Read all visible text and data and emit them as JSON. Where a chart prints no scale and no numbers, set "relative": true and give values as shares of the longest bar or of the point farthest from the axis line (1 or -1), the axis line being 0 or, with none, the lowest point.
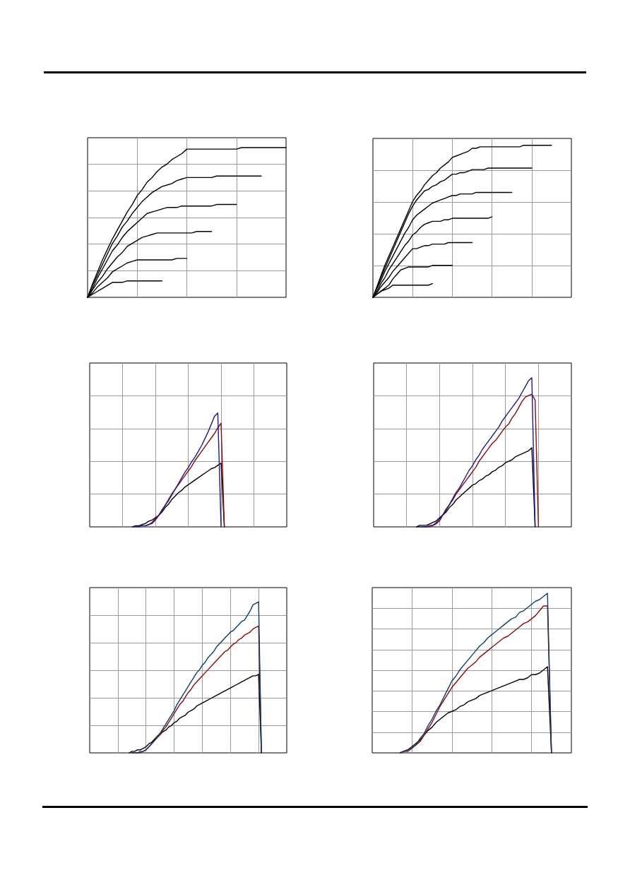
{
  "chart_data": [
    {
      "type": "line",
      "relative": true,
      "grid": true,
      "tick_labels": false,
      "categories": [
        null,
        null,
        null,
        null,
        null,
        null,
        null,
        null,
        null,
        null,
        null,
        null,
        null,
        null,
        null,
        null,
        null,
        null,
        null,
        null,
        null,
        null,
        null,
        null,
        null,
        null,
        null,
        null,
        null,
        null,
        null,
        null,
        null,
        null,
        null,
        null,
        null,
        null,
        null,
        null,
        null
      ],
      "series": [
        {
          "color": "#000000",
          "values": [
            0,
            0.09,
            0.17,
            0.25,
            0.32,
            0.39,
            0.45,
            0.51,
            0.57,
            0.62,
            0.68,
            0.72,
            0.77,
            0.8,
            0.84,
            0.87,
            0.89,
            0.92,
            0.94,
            0.96,
            0.99,
            0.99,
            0.99,
            0.99,
            0.99,
            0.99,
            0.99,
            0.99,
            0.99,
            0.99,
            0.99,
            1,
            1,
            1,
            1,
            1,
            1,
            1,
            1,
            1,
            1
          ]
        },
        {
          "color": "#000000",
          "values": [
            0,
            0.08,
            0.15,
            0.22,
            0.29,
            0.36,
            0.41,
            0.47,
            0.51,
            0.56,
            0.6,
            0.64,
            0.67,
            0.7,
            0.72,
            0.74,
            0.75,
            0.76,
            0.78,
            0.79,
            0.8,
            0.8,
            0.8,
            0.8,
            0.8,
            0.8,
            0.81,
            0.81,
            0.81,
            0.81,
            0.81,
            0.81,
            0.81,
            0.81,
            0.81,
            0.81,
            null,
            null,
            null,
            null,
            null
          ]
        },
        {
          "color": "#000000",
          "values": [
            0,
            0.06,
            0.13,
            0.19,
            0.25,
            0.31,
            0.35,
            0.4,
            0.44,
            0.47,
            0.5,
            0.53,
            0.56,
            0.57,
            0.58,
            0.59,
            0.6,
            0.6,
            0.6,
            0.61,
            0.61,
            0.61,
            0.61,
            0.61,
            0.61,
            0.61,
            0.62,
            0.62,
            0.62,
            0.62,
            0.62,
            null,
            null,
            null,
            null,
            null,
            null,
            null,
            null,
            null,
            null
          ]
        },
        {
          "color": "#000000",
          "values": [
            0,
            0.05,
            0.1,
            0.14,
            0.19,
            0.23,
            0.27,
            0.3,
            0.34,
            0.36,
            0.38,
            0.4,
            0.41,
            0.42,
            0.43,
            0.43,
            0.43,
            0.43,
            0.43,
            0.43,
            0.43,
            0.43,
            0.44,
            0.44,
            0.44,
            0.44,
            null,
            null,
            null,
            null,
            null,
            null,
            null,
            null,
            null,
            null,
            null,
            null,
            null,
            null,
            null
          ]
        },
        {
          "color": "#000000",
          "values": [
            0,
            0.03,
            0.07,
            0.1,
            0.13,
            0.17,
            0.19,
            0.21,
            0.23,
            0.24,
            0.25,
            0.25,
            0.25,
            0.25,
            0.25,
            0.25,
            0.25,
            0.25,
            0.26,
            0.26,
            0.26,
            null,
            null,
            null,
            null,
            null,
            null,
            null,
            null,
            null,
            null,
            null,
            null,
            null,
            null,
            null,
            null,
            null,
            null,
            null,
            null
          ]
        },
        {
          "color": "#000000",
          "values": [
            0,
            0.02,
            0.04,
            0.06,
            0.08,
            0.1,
            0.1,
            0.1,
            0.11,
            0.11,
            0.11,
            0.11,
            0.11,
            0.11,
            0.11,
            0.11,
            null,
            null,
            null,
            null,
            null,
            null,
            null,
            null,
            null,
            null,
            null,
            null,
            null,
            null,
            null,
            null,
            null,
            null,
            null,
            null,
            null,
            null,
            null,
            null,
            null
          ]
        }
      ]
    },
    {
      "type": "line",
      "relative": true,
      "grid": true,
      "tick_labels": false,
      "categories": [
        null,
        null,
        null,
        null,
        null,
        null,
        null,
        null,
        null,
        null,
        null,
        null,
        null,
        null,
        null,
        null,
        null,
        null,
        null,
        null,
        null,
        null,
        null,
        null,
        null,
        null,
        null,
        null,
        null,
        null,
        null,
        null,
        null,
        null,
        null,
        null,
        null,
        null,
        null,
        null,
        null,
        null,
        null,
        null,
        null,
        null,
        null,
        null,
        null,
        null,
        null
      ],
      "series": [
        {
          "color": "#000000",
          "values": [
            0,
            0.07,
            0.14,
            0.21,
            0.27,
            0.33,
            0.39,
            0.45,
            0.51,
            0.57,
            0.63,
            0.67,
            0.7,
            0.74,
            0.77,
            0.8,
            0.82,
            0.85,
            0.87,
            0.89,
            0.92,
            0.93,
            0.94,
            0.95,
            0.96,
            0.98,
            0.98,
            0.99,
            0.99,
            0.99,
            0.99,
            0.99,
            0.99,
            0.99,
            0.99,
            0.99,
            0.99,
            0.99,
            1,
            1,
            1,
            1,
            1,
            1,
            1,
            1,
            null,
            null,
            null,
            null,
            null
          ]
        },
        {
          "color": "#000000",
          "values": [
            0,
            0.06,
            0.13,
            0.19,
            0.25,
            0.31,
            0.37,
            0.43,
            0.49,
            0.55,
            0.6,
            0.64,
            0.67,
            0.7,
            0.71,
            0.73,
            0.74,
            0.76,
            0.77,
            0.79,
            0.81,
            0.81,
            0.82,
            0.82,
            0.83,
            0.84,
            0.84,
            0.84,
            0.84,
            0.85,
            0.85,
            0.85,
            0.85,
            0.85,
            0.85,
            0.85,
            0.85,
            0.85,
            0.85,
            0.85,
            0.85,
            null,
            null,
            null,
            null,
            null,
            null,
            null,
            null,
            null,
            null
          ]
        },
        {
          "color": "#000000",
          "values": [
            0,
            0.06,
            0.11,
            0.17,
            0.22,
            0.27,
            0.32,
            0.37,
            0.42,
            0.46,
            0.51,
            0.54,
            0.56,
            0.58,
            0.6,
            0.62,
            0.63,
            0.64,
            0.65,
            0.66,
            0.67,
            0.67,
            0.68,
            0.68,
            0.68,
            0.68,
            0.69,
            0.69,
            0.69,
            0.69,
            0.69,
            0.69,
            0.69,
            0.69,
            0.69,
            0.69,
            null,
            null,
            null,
            null,
            null,
            null,
            null,
            null,
            null,
            null,
            null,
            null,
            null,
            null,
            null
          ]
        },
        {
          "color": "#000000",
          "values": [
            0,
            0.04,
            0.09,
            0.13,
            0.18,
            0.22,
            0.26,
            0.3,
            0.34,
            0.37,
            0.41,
            0.43,
            0.46,
            0.48,
            0.49,
            0.5,
            0.5,
            0.5,
            0.51,
            0.51,
            0.52,
            0.52,
            0.52,
            0.52,
            0.52,
            0.52,
            0.52,
            0.52,
            0.52,
            0.52,
            0.53,
            null,
            null,
            null,
            null,
            null,
            null,
            null,
            null,
            null,
            null,
            null,
            null,
            null,
            null,
            null,
            null,
            null,
            null,
            null,
            null
          ]
        },
        {
          "color": "#000000",
          "values": [
            0,
            0.03,
            0.07,
            0.1,
            0.13,
            0.17,
            0.2,
            0.23,
            0.26,
            0.29,
            0.32,
            0.32,
            0.33,
            0.34,
            0.34,
            0.35,
            0.35,
            0.35,
            0.35,
            0.36,
            0.36,
            0.36,
            0.36,
            0.36,
            0.36,
            0.36,
            null,
            null,
            null,
            null,
            null,
            null,
            null,
            null,
            null,
            null,
            null,
            null,
            null,
            null,
            null,
            null,
            null,
            null,
            null,
            null,
            null,
            null,
            null,
            null,
            null
          ]
        },
        {
          "color": "#000000",
          "values": [
            0,
            0.02,
            0.04,
            0.06,
            0.08,
            0.12,
            0.15,
            0.18,
            0.19,
            0.2,
            0.2,
            0.2,
            0.2,
            0.2,
            0.2,
            0.21,
            0.21,
            0.21,
            0.21,
            0.21,
            0.21,
            null,
            null,
            null,
            null,
            null,
            null,
            null,
            null,
            null,
            null,
            null,
            null,
            null,
            null,
            null,
            null,
            null,
            null,
            null,
            null,
            null,
            null,
            null,
            null,
            null,
            null,
            null,
            null,
            null,
            null
          ]
        },
        {
          "color": "#000000",
          "values": [
            0,
            0.02,
            0.04,
            0.05,
            0.06,
            0.08,
            0.08,
            0.08,
            0.08,
            0.08,
            0.08,
            0.08,
            0.08,
            0.08,
            0.08,
            0.09,
            null,
            null,
            null,
            null,
            null,
            null,
            null,
            null,
            null,
            null,
            null,
            null,
            null,
            null,
            null,
            null,
            null,
            null,
            null,
            null,
            null,
            null,
            null,
            null,
            null,
            null,
            null,
            null,
            null,
            null,
            null,
            null,
            null,
            null,
            null
          ]
        }
      ]
    },
    {
      "type": "line",
      "relative": true,
      "grid": true,
      "tick_labels": false,
      "categories": [
        null,
        null,
        null,
        null,
        null,
        null,
        null,
        null,
        null,
        null,
        null,
        null,
        null,
        null,
        null,
        null,
        null,
        null,
        null,
        null,
        null,
        null,
        null,
        null,
        null,
        null,
        null,
        null,
        null,
        null,
        null,
        null,
        null,
        null,
        null,
        null,
        null,
        null,
        null,
        null,
        null,
        null,
        null,
        null,
        null,
        null,
        null,
        null,
        null,
        null,
        null,
        null,
        null,
        null,
        null,
        null,
        null,
        null,
        null,
        null,
        null
      ],
      "series": [
        {
          "color": "#000000",
          "values": [
            null,
            null,
            null,
            null,
            null,
            null,
            null,
            null,
            null,
            null,
            null,
            null,
            null,
            0,
            0.01,
            0.01,
            0.02,
            0.03,
            0.05,
            0.06,
            0.08,
            0.1,
            0.13,
            0.17,
            0.2,
            0.24,
            0.27,
            0.3,
            0.32,
            0.35,
            0.37,
            0.39,
            0.41,
            0.43,
            0.45,
            0.47,
            0.49,
            0.51,
            0.52,
            0.54,
            0.56,
            0,
            null,
            null,
            null,
            null,
            null,
            null,
            null,
            null,
            null,
            null,
            null,
            null,
            null,
            null,
            null,
            null,
            null,
            null,
            null
          ]
        },
        {
          "color": "#8b0a0a",
          "values": [
            null,
            null,
            null,
            null,
            null,
            null,
            null,
            null,
            null,
            null,
            null,
            null,
            null,
            null,
            null,
            null,
            null,
            0.01,
            0.02,
            0.04,
            0.07,
            0.1,
            0.15,
            0.19,
            0.24,
            0.29,
            0.33,
            0.37,
            0.41,
            0.45,
            0.49,
            0.53,
            0.58,
            0.62,
            0.66,
            0.7,
            0.74,
            0.78,
            0.82,
            0.87,
            0.91,
            0,
            null,
            null,
            null,
            null,
            null,
            null,
            null,
            null,
            null,
            null,
            null,
            null,
            null,
            null,
            null,
            null,
            null,
            null,
            null
          ]
        },
        {
          "color": "#1a1a8c",
          "values": [
            null,
            null,
            null,
            null,
            null,
            null,
            null,
            null,
            null,
            null,
            null,
            null,
            null,
            0,
            0,
            0,
            0.01,
            0.01,
            0.02,
            0.03,
            0.06,
            0.1,
            0.14,
            0.19,
            0.23,
            0.28,
            0.33,
            0.38,
            0.43,
            0.48,
            0.52,
            0.57,
            0.61,
            0.66,
            0.71,
            0.77,
            0.83,
            0.9,
            0.97,
            1,
            0,
            null,
            null,
            null,
            null,
            null,
            null,
            null,
            null,
            null,
            null,
            null,
            null,
            null,
            null,
            null,
            null,
            null,
            null,
            null,
            null
          ]
        }
      ]
    },
    {
      "type": "line",
      "relative": true,
      "grid": true,
      "tick_labels": false,
      "categories": [
        null,
        null,
        null,
        null,
        null,
        null,
        null,
        null,
        null,
        null,
        null,
        null,
        null,
        null,
        null,
        null,
        null,
        null,
        null,
        null,
        null,
        null,
        null,
        null,
        null,
        null,
        null,
        null,
        null,
        null,
        null,
        null,
        null,
        null,
        null,
        null,
        null,
        null,
        null,
        null,
        null,
        null,
        null,
        null,
        null,
        null,
        null,
        null,
        null,
        null,
        null,
        null,
        null,
        null,
        null,
        null,
        null,
        null,
        null,
        null,
        null
      ],
      "series": [
        {
          "color": "#000000",
          "values": [
            null,
            null,
            null,
            null,
            null,
            null,
            null,
            null,
            null,
            null,
            null,
            null,
            null,
            0,
            0.01,
            0.01,
            0.01,
            0.02,
            0.03,
            0.04,
            0.06,
            0.08,
            0.1,
            0.13,
            0.15,
            0.18,
            0.2,
            0.22,
            0.24,
            0.26,
            0.28,
            0.29,
            0.31,
            0.32,
            0.34,
            0.35,
            0.37,
            0.38,
            0.4,
            0.41,
            0.43,
            0.44,
            0.45,
            0.47,
            0.48,
            0.49,
            0.5,
            0.51,
            0.53,
            0,
            null,
            null,
            null,
            null,
            null,
            null,
            null,
            null,
            null,
            null,
            null
          ]
        },
        {
          "color": "#8b0a0a",
          "values": [
            null,
            null,
            null,
            null,
            null,
            null,
            null,
            null,
            null,
            null,
            null,
            null,
            null,
            null,
            null,
            0,
            0,
            0,
            0.01,
            0.02,
            0.04,
            0.08,
            0.11,
            0.15,
            0.18,
            0.22,
            0.25,
            0.28,
            0.31,
            0.34,
            0.37,
            0.4,
            0.44,
            0.47,
            0.5,
            0.53,
            0.56,
            0.58,
            0.61,
            0.64,
            0.67,
            0.69,
            0.73,
            0.76,
            0.8,
            0.84,
            0.87,
            0.88,
            0.89,
            0.85,
            0,
            null,
            null,
            null,
            null,
            null,
            null,
            null,
            null,
            null,
            null
          ]
        },
        {
          "color": "#1a1a8c",
          "values": [
            null,
            null,
            null,
            null,
            null,
            null,
            null,
            null,
            null,
            null,
            null,
            null,
            null,
            0,
            0,
            0,
            0,
            0.01,
            0.01,
            0.03,
            0.05,
            0.08,
            0.12,
            0.15,
            0.19,
            0.23,
            0.26,
            0.3,
            0.34,
            0.38,
            0.41,
            0.45,
            0.48,
            0.52,
            0.55,
            0.58,
            0.61,
            0.64,
            0.67,
            0.71,
            0.74,
            0.77,
            0.8,
            0.83,
            0.86,
            0.9,
            0.94,
            0.98,
            1,
            0,
            null,
            null,
            null,
            null,
            null,
            null,
            null,
            null,
            null,
            null,
            null
          ]
        }
      ]
    },
    {
      "type": "line",
      "relative": true,
      "grid": true,
      "tick_labels": false,
      "categories": [
        null,
        null,
        null,
        null,
        null,
        null,
        null,
        null,
        null,
        null,
        null,
        null,
        null,
        null,
        null,
        null,
        null,
        null,
        null,
        null,
        null,
        null,
        null,
        null,
        null,
        null,
        null,
        null,
        null,
        null,
        null,
        null,
        null,
        null,
        null,
        null,
        null,
        null,
        null,
        null,
        null,
        null,
        null,
        null,
        null,
        null,
        null,
        null,
        null,
        null,
        null,
        null,
        null,
        null,
        null,
        null,
        null,
        null,
        null,
        null,
        null,
        null,
        null,
        null,
        null,
        null,
        null,
        null,
        null,
        null,
        null
      ],
      "series": [
        {
          "color": "#000000",
          "values": [
            null,
            null,
            null,
            null,
            null,
            null,
            null,
            null,
            null,
            null,
            null,
            null,
            null,
            null,
            0,
            0.01,
            0.01,
            0.02,
            0.02,
            0.03,
            0.04,
            0.06,
            0.07,
            0.09,
            0.11,
            0.12,
            0.14,
            0.15,
            0.17,
            0.18,
            0.2,
            0.21,
            0.23,
            0.24,
            0.25,
            0.27,
            0.28,
            0.29,
            0.31,
            0.32,
            0.33,
            0.34,
            0.35,
            0.36,
            0.37,
            0.38,
            0.39,
            0.4,
            0.41,
            0.42,
            0.43,
            0.44,
            0.45,
            0.46,
            0.47,
            0.48,
            0.49,
            0.5,
            0.51,
            0.51,
            0.52,
            0,
            null,
            null,
            null,
            null,
            null,
            null,
            null,
            null,
            null
          ]
        },
        {
          "color": "#8b0a0a",
          "values": [
            null,
            null,
            null,
            null,
            null,
            null,
            null,
            null,
            null,
            null,
            null,
            null,
            null,
            null,
            null,
            0,
            0,
            0,
            0.01,
            0.01,
            0.02,
            0.04,
            0.06,
            0.08,
            0.1,
            0.12,
            0.15,
            0.17,
            0.2,
            0.23,
            0.26,
            0.29,
            0.32,
            0.34,
            0.37,
            0.4,
            0.42,
            0.45,
            0.47,
            0.49,
            0.51,
            0.53,
            0.55,
            0.57,
            0.59,
            0.61,
            0.63,
            0.65,
            0.67,
            0.68,
            0.7,
            0.72,
            0.73,
            0.75,
            0.76,
            0.78,
            0.79,
            0.8,
            0.82,
            0.83,
            0.84,
            0,
            null,
            null,
            null,
            null,
            null,
            null,
            null,
            null,
            null
          ]
        },
        {
          "color": "#0b3d6e",
          "values": [
            null,
            null,
            null,
            null,
            null,
            null,
            null,
            null,
            null,
            null,
            null,
            null,
            null,
            null,
            null,
            0,
            0,
            0,
            0,
            0.01,
            0.02,
            0.04,
            0.06,
            0.08,
            0.11,
            0.13,
            0.16,
            0.19,
            0.22,
            0.25,
            0.28,
            0.32,
            0.35,
            0.38,
            0.41,
            0.44,
            0.47,
            0.5,
            0.53,
            0.55,
            0.58,
            0.6,
            0.63,
            0.65,
            0.67,
            0.7,
            0.72,
            0.74,
            0.76,
            0.78,
            0.8,
            0.81,
            0.83,
            0.85,
            0.87,
            0.88,
            0.91,
            0.94,
            0.98,
            0.99,
            1,
            0,
            null,
            null,
            null,
            null,
            null,
            null,
            null,
            null,
            null
          ]
        }
      ]
    },
    {
      "type": "line",
      "relative": true,
      "grid": true,
      "tick_labels": false,
      "categories": [
        null,
        null,
        null,
        null,
        null,
        null,
        null,
        null,
        null,
        null,
        null,
        null,
        null,
        null,
        null,
        null,
        null,
        null,
        null,
        null,
        null,
        null,
        null,
        null,
        null,
        null,
        null,
        null,
        null,
        null,
        null,
        null,
        null,
        null,
        null,
        null,
        null,
        null,
        null,
        null,
        null,
        null,
        null,
        null,
        null,
        null,
        null,
        null,
        null,
        null,
        null
      ],
      "series": [
        {
          "color": "#000000",
          "values": [
            null,
            null,
            null,
            null,
            null,
            null,
            null,
            0,
            0.01,
            0.02,
            0.04,
            0.06,
            0.08,
            0.11,
            0.14,
            0.16,
            0.19,
            0.21,
            0.23,
            0.25,
            0.26,
            0.27,
            0.29,
            0.3,
            0.32,
            0.33,
            0.34,
            0.36,
            0.37,
            0.38,
            0.39,
            0.4,
            0.41,
            0.42,
            0.43,
            0.44,
            0.45,
            0.46,
            0.46,
            0.47,
            0.49,
            0.49,
            0.5,
            0.52,
            0.54,
            0,
            null,
            null,
            null,
            null,
            null
          ]
        },
        {
          "color": "#8b0a0a",
          "values": [
            null,
            null,
            null,
            null,
            null,
            null,
            null,
            0,
            0.01,
            0.01,
            0.03,
            0.05,
            0.07,
            0.11,
            0.15,
            0.19,
            0.24,
            0.29,
            0.33,
            0.37,
            0.41,
            0.44,
            0.47,
            0.5,
            0.53,
            0.55,
            0.57,
            0.6,
            0.62,
            0.64,
            0.66,
            0.68,
            0.7,
            0.72,
            0.73,
            0.75,
            0.77,
            0.79,
            0.81,
            0.82,
            0.84,
            0.86,
            0.89,
            0.92,
            0.92,
            0,
            null,
            null,
            null,
            null,
            null
          ]
        },
        {
          "color": "#0b3d6e",
          "values": [
            null,
            null,
            null,
            null,
            null,
            null,
            null,
            0,
            0.01,
            0.02,
            0.03,
            0.05,
            0.09,
            0.12,
            0.17,
            0.21,
            0.26,
            0.3,
            0.35,
            0.4,
            0.45,
            0.48,
            0.52,
            0.55,
            0.58,
            0.61,
            0.64,
            0.67,
            0.69,
            0.72,
            0.74,
            0.76,
            0.78,
            0.8,
            0.82,
            0.84,
            0.85,
            0.88,
            0.89,
            0.91,
            0.93,
            0.95,
            0.96,
            0.98,
            1,
            0,
            null,
            null,
            null,
            null,
            null
          ]
        }
      ]
    }
  ]
}
